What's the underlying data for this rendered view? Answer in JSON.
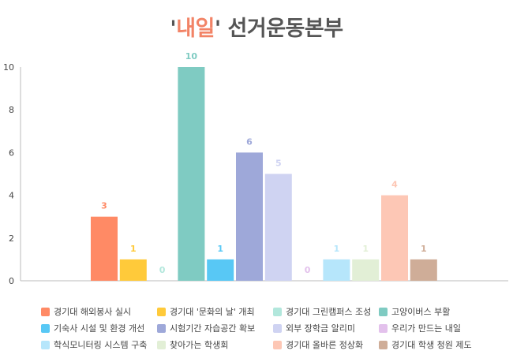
{
  "chart_data": {
    "type": "bar",
    "title": {
      "prefix": "'",
      "highlight": "내일",
      "rest": "' 선거운동본부"
    },
    "ylim": [
      0,
      10
    ],
    "yticks": [
      0,
      2,
      4,
      6,
      8,
      10
    ],
    "grid": false,
    "legend_position": "bottom",
    "series": [
      {
        "name": "경기대 해외봉사 실시",
        "value": 3,
        "color": "#ff8a65"
      },
      {
        "name": "경기대 '문화의 날' 개최",
        "value": 1,
        "color": "#ffca3a"
      },
      {
        "name": "경기대 그린캠퍼스 조성",
        "value": 0,
        "color": "#b2e7dc"
      },
      {
        "name": "고양이버스 부활",
        "value": 10,
        "color": "#7fcbc2"
      },
      {
        "name": "기숙사 시설 및 환경 개선",
        "value": 1,
        "color": "#58c8f5"
      },
      {
        "name": "시험기간 자습공간 확보",
        "value": 6,
        "color": "#9ea8d9"
      },
      {
        "name": "외부 장학금 알리미",
        "value": 5,
        "color": "#cfd3f2"
      },
      {
        "name": "우리가 만드는 내일",
        "value": 0,
        "color": "#e3c1ec"
      },
      {
        "name": "학식모니터링 시스템 구축",
        "value": 1,
        "color": "#b6e6fb"
      },
      {
        "name": "찾아가는 학생회",
        "value": 1,
        "color": "#e2efd6"
      },
      {
        "name": "경기대 올바른 정상화",
        "value": 4,
        "color": "#fdc7b5"
      },
      {
        "name": "경기대 학생 청원 제도",
        "value": 1,
        "color": "#cfad98"
      }
    ]
  }
}
